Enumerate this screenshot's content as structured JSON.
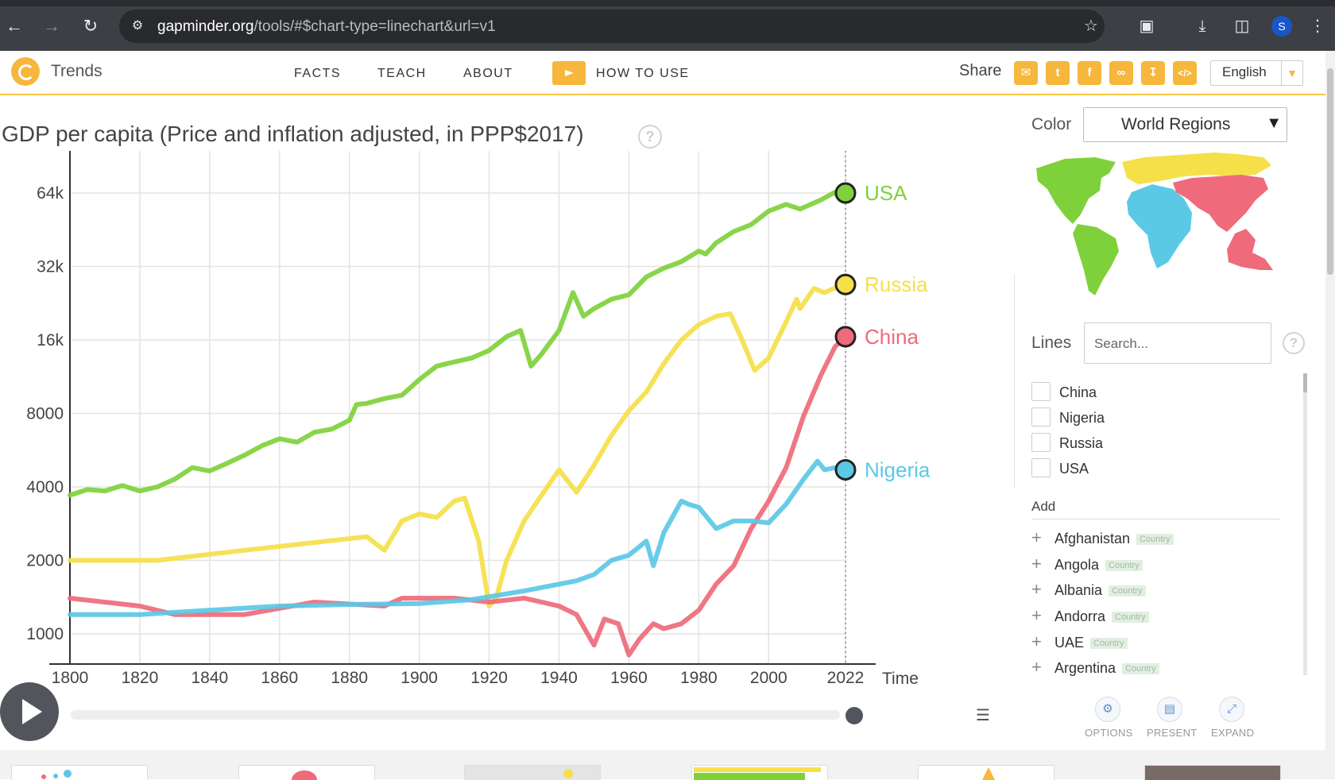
{
  "browser": {
    "url_host": "gapminder.org",
    "url_path": "/tools/#$chart-type=linechart&url=v1",
    "avatar_letter": "S"
  },
  "app": {
    "brand": "Trends",
    "menu": [
      "FACTS",
      "TEACH",
      "ABOUT"
    ],
    "how_to_use": "HOW TO USE",
    "share_label": "Share",
    "language": "English"
  },
  "right_panel": {
    "color_label": "Color",
    "color_value": "World Regions",
    "lines_label": "Lines",
    "search_placeholder": "Search...",
    "selected": [
      "China",
      "Nigeria",
      "Russia",
      "USA"
    ],
    "add_label": "Add",
    "add_items": [
      {
        "name": "Afghanistan",
        "tag": "Country"
      },
      {
        "name": "Angola",
        "tag": "Country"
      },
      {
        "name": "Albania",
        "tag": "Country"
      },
      {
        "name": "Andorra",
        "tag": "Country"
      },
      {
        "name": "UAE",
        "tag": "Country"
      },
      {
        "name": "Argentina",
        "tag": "Country"
      }
    ],
    "controls": [
      "OPTIONS",
      "PRESENT",
      "EXPAND"
    ],
    "region_colors": {
      "americas": "#7fd13b",
      "africa": "#5bc8e6",
      "europe": "#f5e04a",
      "asia": "#ef6a7a"
    }
  },
  "chart_data": {
    "type": "line",
    "title": "GDP per capita (Price and inflation adjusted, in PPP$2017)",
    "xlabel": "Time",
    "ylabel": "GDP per capita",
    "yscale": "log",
    "xlim": [
      1800,
      2022
    ],
    "ylim": [
      850,
      80000
    ],
    "xticks": [
      1800,
      1820,
      1840,
      1860,
      1880,
      1900,
      1920,
      1940,
      1960,
      1980,
      2000,
      2022
    ],
    "yticks": [
      1000,
      2000,
      4000,
      8000,
      16000,
      32000,
      64000
    ],
    "ytick_labels": [
      "1000",
      "2000",
      "4000",
      "8000",
      "16k",
      "32k",
      "64k"
    ],
    "series": [
      {
        "name": "USA",
        "color": "#7fd13b",
        "points": [
          [
            1800,
            3700
          ],
          [
            1805,
            3900
          ],
          [
            1810,
            3850
          ],
          [
            1815,
            4050
          ],
          [
            1820,
            3850
          ],
          [
            1825,
            4000
          ],
          [
            1830,
            4300
          ],
          [
            1835,
            4800
          ],
          [
            1840,
            4650
          ],
          [
            1845,
            5000
          ],
          [
            1850,
            5400
          ],
          [
            1855,
            5900
          ],
          [
            1860,
            6300
          ],
          [
            1865,
            6100
          ],
          [
            1870,
            6700
          ],
          [
            1875,
            6900
          ],
          [
            1880,
            7500
          ],
          [
            1882,
            8700
          ],
          [
            1885,
            8800
          ],
          [
            1890,
            9200
          ],
          [
            1895,
            9500
          ],
          [
            1900,
            11000
          ],
          [
            1905,
            12500
          ],
          [
            1910,
            13000
          ],
          [
            1915,
            13500
          ],
          [
            1920,
            14500
          ],
          [
            1925,
            16500
          ],
          [
            1929,
            17500
          ],
          [
            1932,
            12500
          ],
          [
            1935,
            14000
          ],
          [
            1940,
            17500
          ],
          [
            1944,
            25000
          ],
          [
            1947,
            20000
          ],
          [
            1950,
            21500
          ],
          [
            1955,
            23500
          ],
          [
            1960,
            24500
          ],
          [
            1965,
            29000
          ],
          [
            1970,
            31500
          ],
          [
            1975,
            33500
          ],
          [
            1980,
            37000
          ],
          [
            1982,
            36000
          ],
          [
            1985,
            40000
          ],
          [
            1990,
            44500
          ],
          [
            1995,
            47500
          ],
          [
            2000,
            54000
          ],
          [
            2005,
            57500
          ],
          [
            2009,
            55000
          ],
          [
            2015,
            60000
          ],
          [
            2019,
            64500
          ],
          [
            2020,
            61500
          ],
          [
            2022,
            64000
          ]
        ]
      },
      {
        "name": "Russia",
        "color": "#f5e04a",
        "points": [
          [
            1800,
            2000
          ],
          [
            1825,
            2000
          ],
          [
            1850,
            2200
          ],
          [
            1885,
            2500
          ],
          [
            1890,
            2200
          ],
          [
            1895,
            2900
          ],
          [
            1900,
            3100
          ],
          [
            1905,
            3000
          ],
          [
            1910,
            3500
          ],
          [
            1913,
            3600
          ],
          [
            1917,
            2400
          ],
          [
            1920,
            1300
          ],
          [
            1922,
            1400
          ],
          [
            1925,
            2000
          ],
          [
            1930,
            2900
          ],
          [
            1935,
            3700
          ],
          [
            1940,
            4700
          ],
          [
            1945,
            3800
          ],
          [
            1950,
            4900
          ],
          [
            1955,
            6500
          ],
          [
            1960,
            8200
          ],
          [
            1965,
            9800
          ],
          [
            1970,
            12800
          ],
          [
            1975,
            16000
          ],
          [
            1980,
            18500
          ],
          [
            1985,
            20000
          ],
          [
            1989,
            20500
          ],
          [
            1992,
            16500
          ],
          [
            1996,
            12000
          ],
          [
            2000,
            13500
          ],
          [
            2005,
            19000
          ],
          [
            2008,
            23500
          ],
          [
            2009,
            21500
          ],
          [
            2013,
            26000
          ],
          [
            2016,
            25000
          ],
          [
            2020,
            26500
          ],
          [
            2022,
            27000
          ]
        ]
      },
      {
        "name": "China",
        "color": "#ef6a7a",
        "points": [
          [
            1800,
            1400
          ],
          [
            1820,
            1300
          ],
          [
            1830,
            1200
          ],
          [
            1850,
            1200
          ],
          [
            1870,
            1350
          ],
          [
            1890,
            1300
          ],
          [
            1895,
            1400
          ],
          [
            1910,
            1400
          ],
          [
            1920,
            1350
          ],
          [
            1930,
            1400
          ],
          [
            1935,
            1350
          ],
          [
            1940,
            1300
          ],
          [
            1945,
            1200
          ],
          [
            1950,
            900
          ],
          [
            1953,
            1150
          ],
          [
            1957,
            1100
          ],
          [
            1960,
            820
          ],
          [
            1963,
            950
          ],
          [
            1967,
            1100
          ],
          [
            1970,
            1050
          ],
          [
            1975,
            1100
          ],
          [
            1980,
            1250
          ],
          [
            1985,
            1600
          ],
          [
            1990,
            1900
          ],
          [
            1995,
            2700
          ],
          [
            2000,
            3500
          ],
          [
            2005,
            4800
          ],
          [
            2010,
            7800
          ],
          [
            2015,
            11500
          ],
          [
            2019,
            15000
          ],
          [
            2022,
            16500
          ]
        ]
      },
      {
        "name": "Nigeria",
        "color": "#5bc8e6",
        "points": [
          [
            1800,
            1200
          ],
          [
            1820,
            1200
          ],
          [
            1840,
            1250
          ],
          [
            1860,
            1300
          ],
          [
            1880,
            1320
          ],
          [
            1900,
            1330
          ],
          [
            1915,
            1380
          ],
          [
            1930,
            1500
          ],
          [
            1945,
            1650
          ],
          [
            1950,
            1750
          ],
          [
            1955,
            2000
          ],
          [
            1960,
            2100
          ],
          [
            1965,
            2400
          ],
          [
            1967,
            1900
          ],
          [
            1970,
            2600
          ],
          [
            1975,
            3500
          ],
          [
            1977,
            3400
          ],
          [
            1980,
            3300
          ],
          [
            1985,
            2700
          ],
          [
            1990,
            2900
          ],
          [
            1995,
            2900
          ],
          [
            2000,
            2850
          ],
          [
            2005,
            3400
          ],
          [
            2010,
            4300
          ],
          [
            2014,
            5100
          ],
          [
            2016,
            4700
          ],
          [
            2019,
            4800
          ],
          [
            2022,
            4700
          ]
        ]
      }
    ]
  }
}
